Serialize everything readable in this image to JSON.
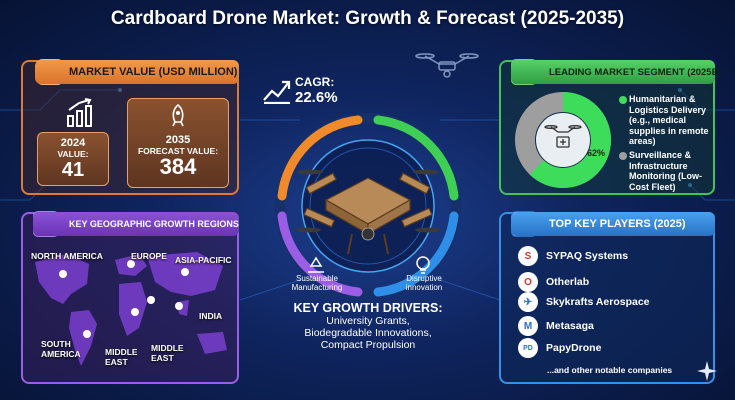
{
  "title": "Cardboard Drone Market: Growth & Forecast (2025-2035)",
  "market_value": {
    "heading": "MARKET VALUE (USD MILLION)",
    "box_2024": {
      "year": "2024",
      "label": "VALUE:",
      "value": "41"
    },
    "box_2035": {
      "year": "2035",
      "label": "FORECAST VALUE:",
      "value": "384"
    }
  },
  "cagr": {
    "label": "CAGR:",
    "value": "22.6%"
  },
  "leading_segment": {
    "heading": "LEADING MARKET SEGMENT (2025E)",
    "percent_label": "62%",
    "share": 0.62,
    "items": [
      {
        "text": "Humanitarian & Logistics Delivery (e.g., medical supplies in remote areas)",
        "color": "#3ddc5a"
      },
      {
        "text": "Surveillance & Infrastructure Monitoring (Low-Cost Fleet)",
        "color": "#9e9e9e"
      }
    ]
  },
  "geo": {
    "heading": "KEY GEOGRAPHIC GROWTH REGIONS",
    "regions": {
      "north_america": "NORTH AMERICA",
      "europe": "EUROPE",
      "asia_pacific": "ASIA-PACIFIC",
      "india": "INDIA",
      "south_america": "SOUTH AMERICA",
      "middle_east_1": "MIDDLE EAST",
      "middle_east_2": "MIDDLE EAST"
    }
  },
  "center": {
    "sustainable": "Sustainable Manufacturing",
    "disruptive": "Disruptive innovation"
  },
  "drivers": {
    "heading": "KEY GROWTH DRIVERS:",
    "line1": "University Grants,",
    "line2": "Biodegradable Innovations,",
    "line3": "Compact Propulsion"
  },
  "players": {
    "heading": "TOP KEY PLAYERS (2025)",
    "list": [
      "SYPAQ Systems",
      "Otherlab",
      "Skykrafts Aerospace",
      "Metasaga",
      "PapyDrone"
    ],
    "footer": "...and other notable companies"
  },
  "colors": {
    "orange": "#e07a2c",
    "green": "#44c25a",
    "purple": "#9b5de5",
    "blue": "#3a8ee6"
  }
}
